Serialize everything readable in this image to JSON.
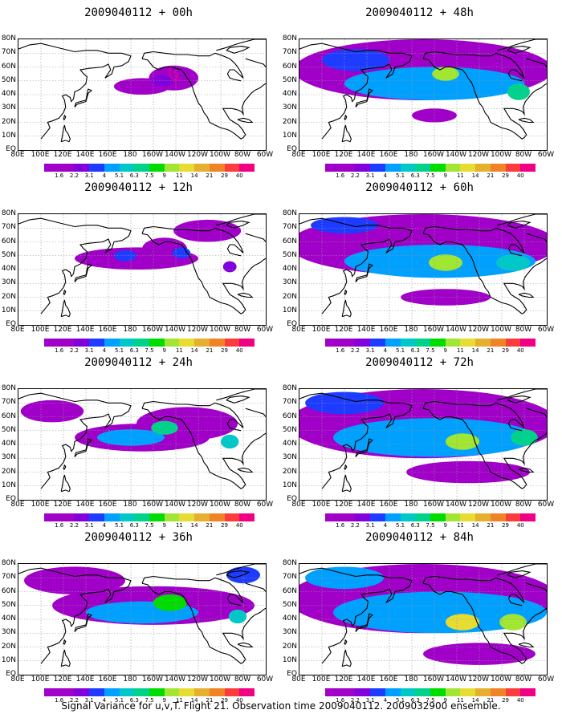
{
  "caption": "Signal Variance for u,v,T. Flight 21. Observation time 2009040112. 2009032900 ensemble.",
  "lat_labels": [
    "80N",
    "70N",
    "60N",
    "50N",
    "40N",
    "30N",
    "20N",
    "10N",
    "EQ"
  ],
  "lon_labels": [
    "80E",
    "100E",
    "120E",
    "140E",
    "160E",
    "180",
    "160W",
    "140W",
    "120W",
    "100W",
    "80W",
    "60W"
  ],
  "colorbar": {
    "labels": [
      "1.6",
      "2.2",
      "3.1",
      "4",
      "5.1",
      "6.3",
      "7.5",
      "9",
      "11",
      "14",
      "21",
      "29",
      "40"
    ],
    "colors": [
      "#a000c8",
      "#8200dc",
      "#1e3cff",
      "#00a0ff",
      "#00c8c8",
      "#00d28c",
      "#00dc00",
      "#a0e632",
      "#e6dc32",
      "#e6af2d",
      "#f08228",
      "#fa3c3c",
      "#f00082"
    ]
  },
  "domain": {
    "lon_min": 80,
    "lon_max": 300,
    "lat_min": 0,
    "lat_max": 80
  },
  "panels": [
    {
      "title": "2009040112 + 00h",
      "blobs": [
        {
          "lon": 218,
          "lat": 52,
          "rx": 22,
          "ry": 9,
          "level": 0
        },
        {
          "lon": 190,
          "lat": 46,
          "rx": 25,
          "ry": 6,
          "level": 0
        },
        {
          "lon": 208,
          "lat": 50,
          "rx": 10,
          "ry": 4,
          "level": 1
        }
      ],
      "track": true
    },
    {
      "title": "2009040112 + 12h",
      "blobs": [
        {
          "lon": 185,
          "lat": 48,
          "rx": 55,
          "ry": 8,
          "level": 0
        },
        {
          "lon": 210,
          "lat": 55,
          "rx": 20,
          "ry": 8,
          "level": 0
        },
        {
          "lon": 248,
          "lat": 68,
          "rx": 30,
          "ry": 8,
          "level": 0
        },
        {
          "lon": 175,
          "lat": 50,
          "rx": 10,
          "ry": 4,
          "level": 2
        },
        {
          "lon": 225,
          "lat": 52,
          "rx": 8,
          "ry": 4,
          "level": 2
        },
        {
          "lon": 268,
          "lat": 42,
          "rx": 6,
          "ry": 4,
          "level": 1
        }
      ],
      "track": false
    },
    {
      "title": "2009040112 + 24h",
      "blobs": [
        {
          "lon": 190,
          "lat": 45,
          "rx": 60,
          "ry": 10,
          "level": 0
        },
        {
          "lon": 230,
          "lat": 55,
          "rx": 45,
          "ry": 12,
          "level": 0
        },
        {
          "lon": 110,
          "lat": 64,
          "rx": 28,
          "ry": 8,
          "level": 0
        },
        {
          "lon": 180,
          "lat": 45,
          "rx": 30,
          "ry": 6,
          "level": 3
        },
        {
          "lon": 210,
          "lat": 52,
          "rx": 12,
          "ry": 5,
          "level": 5
        },
        {
          "lon": 268,
          "lat": 42,
          "rx": 8,
          "ry": 5,
          "level": 4
        }
      ],
      "track": false
    },
    {
      "title": "2009040112 + 36h",
      "blobs": [
        {
          "lon": 200,
          "lat": 50,
          "rx": 90,
          "ry": 14,
          "level": 0
        },
        {
          "lon": 130,
          "lat": 68,
          "rx": 45,
          "ry": 10,
          "level": 0
        },
        {
          "lon": 190,
          "lat": 45,
          "rx": 50,
          "ry": 8,
          "level": 3
        },
        {
          "lon": 215,
          "lat": 52,
          "rx": 15,
          "ry": 6,
          "level": 6
        },
        {
          "lon": 275,
          "lat": 42,
          "rx": 8,
          "ry": 5,
          "level": 4
        },
        {
          "lon": 280,
          "lat": 72,
          "rx": 15,
          "ry": 6,
          "level": 2
        }
      ],
      "track": false
    },
    {
      "title": "2009040112 + 48h",
      "blobs": [
        {
          "lon": 190,
          "lat": 58,
          "rx": 115,
          "ry": 22,
          "level": 0
        },
        {
          "lon": 200,
          "lat": 48,
          "rx": 80,
          "ry": 12,
          "level": 3
        },
        {
          "lon": 210,
          "lat": 55,
          "rx": 12,
          "ry": 5,
          "level": 7
        },
        {
          "lon": 275,
          "lat": 42,
          "rx": 10,
          "ry": 6,
          "level": 5
        },
        {
          "lon": 130,
          "lat": 65,
          "rx": 30,
          "ry": 8,
          "level": 2
        },
        {
          "lon": 200,
          "lat": 25,
          "rx": 20,
          "ry": 5,
          "level": 0
        }
      ],
      "track": false
    },
    {
      "title": "2009040112 + 60h",
      "blobs": [
        {
          "lon": 190,
          "lat": 58,
          "rx": 120,
          "ry": 22,
          "level": 0
        },
        {
          "lon": 205,
          "lat": 46,
          "rx": 85,
          "ry": 12,
          "level": 3
        },
        {
          "lon": 210,
          "lat": 45,
          "rx": 15,
          "ry": 6,
          "level": 7
        },
        {
          "lon": 270,
          "lat": 45,
          "rx": 15,
          "ry": 6,
          "level": 4
        },
        {
          "lon": 210,
          "lat": 20,
          "rx": 40,
          "ry": 6,
          "level": 0
        },
        {
          "lon": 120,
          "lat": 72,
          "rx": 30,
          "ry": 6,
          "level": 2
        }
      ],
      "track": false
    },
    {
      "title": "2009040112 + 72h",
      "blobs": [
        {
          "lon": 190,
          "lat": 55,
          "rx": 120,
          "ry": 25,
          "level": 0
        },
        {
          "lon": 200,
          "lat": 45,
          "rx": 90,
          "ry": 14,
          "level": 3
        },
        {
          "lon": 225,
          "lat": 42,
          "rx": 15,
          "ry": 6,
          "level": 7
        },
        {
          "lon": 280,
          "lat": 45,
          "rx": 12,
          "ry": 6,
          "level": 5
        },
        {
          "lon": 230,
          "lat": 20,
          "rx": 55,
          "ry": 8,
          "level": 0
        },
        {
          "lon": 120,
          "lat": 70,
          "rx": 35,
          "ry": 8,
          "level": 2
        }
      ],
      "track": false
    },
    {
      "title": "2009040112 + 84h",
      "blobs": [
        {
          "lon": 190,
          "lat": 55,
          "rx": 120,
          "ry": 25,
          "level": 0
        },
        {
          "lon": 205,
          "lat": 45,
          "rx": 95,
          "ry": 15,
          "level": 3
        },
        {
          "lon": 225,
          "lat": 38,
          "rx": 15,
          "ry": 6,
          "level": 8
        },
        {
          "lon": 270,
          "lat": 38,
          "rx": 12,
          "ry": 6,
          "level": 7
        },
        {
          "lon": 240,
          "lat": 15,
          "rx": 50,
          "ry": 8,
          "level": 0
        },
        {
          "lon": 120,
          "lat": 70,
          "rx": 35,
          "ry": 8,
          "level": 3
        }
      ],
      "track": false
    }
  ]
}
